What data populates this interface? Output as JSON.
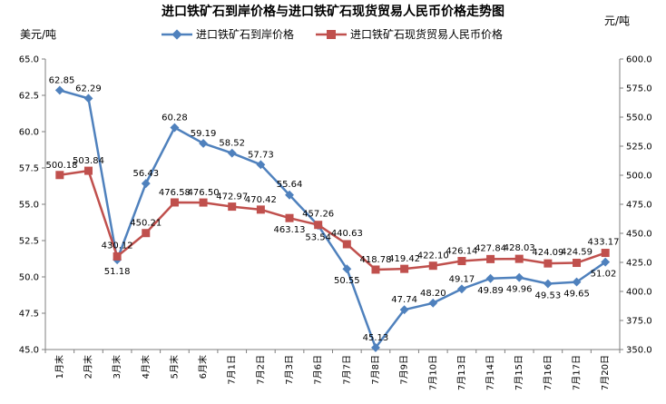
{
  "chart_data": {
    "type": "line",
    "title": "进口铁矿石到岸价格与进口铁矿石现货贸易人民币价格走势图",
    "left_unit": "美元/吨",
    "right_unit": "元/吨",
    "categories": [
      "1月末",
      "2月末",
      "3月末",
      "4月末",
      "5月末",
      "6月末",
      "7月1日",
      "7月2日",
      "7月3日",
      "7月6日",
      "7月7日",
      "7月8日",
      "7月9日",
      "7月10日",
      "7月13日",
      "7月14日",
      "7月15日",
      "7月16日",
      "7月17日",
      "7月20日"
    ],
    "left_axis": {
      "min": 45.0,
      "max": 65.0,
      "ticks": [
        "45.0",
        "47.5",
        "50.0",
        "52.5",
        "55.0",
        "57.5",
        "60.0",
        "62.5",
        "65.0"
      ]
    },
    "right_axis": {
      "min": 350.0,
      "max": 600.0,
      "ticks": [
        "350.0",
        "375.0",
        "400.0",
        "425.0",
        "450.0",
        "475.0",
        "500.0",
        "525.0",
        "550.0",
        "575.0",
        "600.0"
      ]
    },
    "series": [
      {
        "name": "进口铁矿石到岸价格",
        "axis": "left",
        "color": "#4f81bd",
        "marker": "diamond",
        "values": [
          62.85,
          62.29,
          51.18,
          56.43,
          60.28,
          59.19,
          58.52,
          57.73,
          55.64,
          53.54,
          50.55,
          45.13,
          47.74,
          48.2,
          49.17,
          49.89,
          49.96,
          49.53,
          49.65,
          51.02
        ],
        "labels": [
          "62.85",
          "62.29",
          "51.18",
          "56.43",
          "60.28",
          "59.19",
          "58.52",
          "57.73",
          "55.64",
          "53.54",
          "50.55",
          "45.13",
          "47.74",
          "48.20",
          "49.17",
          "49.89",
          "49.96",
          "49.53",
          "49.65",
          "51.02"
        ]
      },
      {
        "name": "进口铁矿石现货贸易人民币价格",
        "axis": "right",
        "color": "#c0504d",
        "marker": "square",
        "values": [
          500.18,
          503.84,
          430.12,
          450.21,
          476.58,
          476.5,
          472.97,
          470.42,
          463.13,
          457.26,
          440.63,
          418.78,
          419.42,
          422.1,
          426.14,
          427.84,
          428.03,
          424.09,
          424.59,
          433.17
        ],
        "labels": [
          "500.18",
          "503.84",
          "430.12",
          "450.21",
          "476.58",
          "476.50",
          "472.97",
          "470.42",
          "463.13",
          "457.26",
          "440.63",
          "418.78",
          "419.42",
          "422.10",
          "426.14",
          "427.84",
          "428.03",
          "424.09",
          "424.59",
          "433.17"
        ]
      }
    ],
    "grid": false,
    "legend_position": "top"
  }
}
